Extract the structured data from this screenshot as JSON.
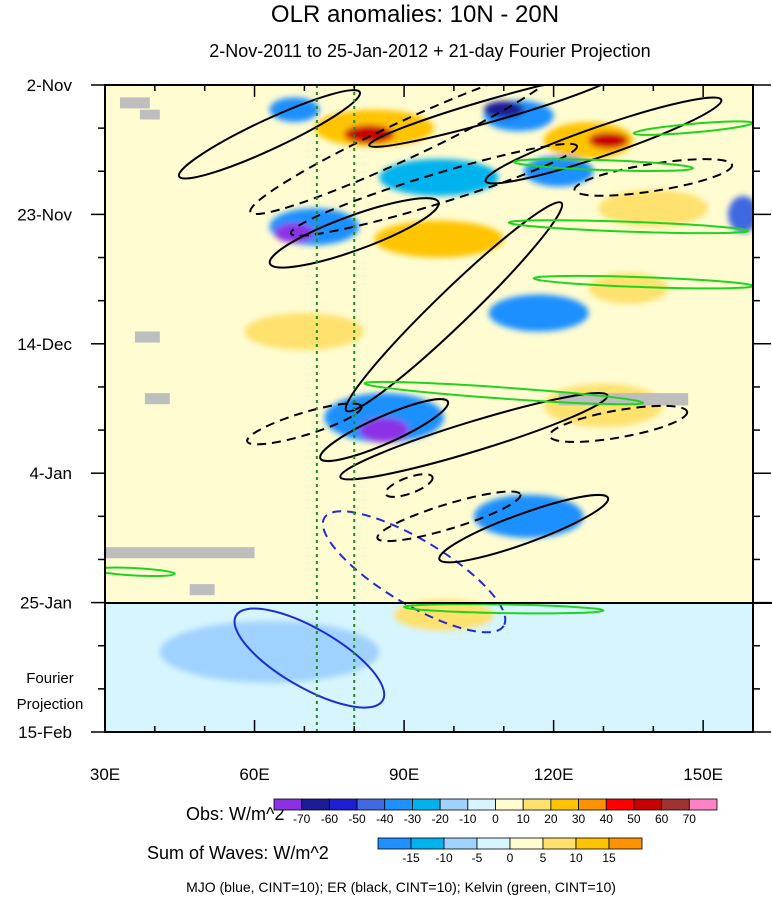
{
  "chart_data": {
    "type": "heatmap",
    "title": "OLR anomalies: 10N - 20N",
    "subtitle": "2-Nov-2011 to 25-Jan-2012 + 21-day Fourier Projection",
    "x_axis": {
      "range": [
        30,
        160
      ],
      "tick_values": [
        30,
        60,
        90,
        120,
        150
      ],
      "tick_labels": [
        "30E",
        "60E",
        "90E",
        "120E",
        "150E"
      ]
    },
    "y_axis": {
      "range_days": [
        0,
        105
      ],
      "tick_days": [
        0,
        21,
        42,
        63,
        84,
        105
      ],
      "tick_labels": [
        "2-Nov",
        "23-Nov",
        "14-Dec",
        "4-Jan",
        "25-Jan",
        "15-Feb"
      ],
      "observation_end_day": 84,
      "projection_label": [
        "Fourier",
        "Projection"
      ]
    },
    "reference_longitudes": [
      72.5,
      80
    ],
    "obs_colorbar": {
      "label": "Obs: W/m^2",
      "levels": [
        "-70",
        "-60",
        "-50",
        "-40",
        "-30",
        "-20",
        "-10",
        "0",
        "10",
        "20",
        "30",
        "40",
        "50",
        "60",
        "70"
      ],
      "colors": [
        "#8c30e6",
        "#1c1c96",
        "#1e1ed2",
        "#4169e1",
        "#1e90ff",
        "#00b2ee",
        "#a0d2ff",
        "#d6f5ff",
        "#fffcd2",
        "#ffe16e",
        "#ffc400",
        "#ff9200",
        "#ff0000",
        "#c80000",
        "#a03232",
        "#ff82c8"
      ]
    },
    "waves_colorbar": {
      "label": "Sum of Waves: W/m^2",
      "levels": [
        "-15",
        "-10",
        "-5",
        "0",
        "5",
        "10",
        "15"
      ],
      "colors": [
        "#1e90ff",
        "#00b2ee",
        "#a0d2ff",
        "#d6f5ff",
        "#fffcd2",
        "#ffe16e",
        "#ffc400",
        "#ff9200"
      ]
    },
    "footnote": "MJO (blue, CINT=10); ER (black, CINT=10); Kelvin (green, CINT=10)",
    "anomaly_blobs": [
      {
        "lon": 68,
        "day": 4,
        "rx": 5,
        "ry": 2,
        "level": -3
      },
      {
        "lon": 113,
        "day": 5,
        "rx": 7,
        "ry": 2.5,
        "level": -3
      },
      {
        "lon": 110,
        "day": 4,
        "rx": 4,
        "ry": 1.4,
        "level": -6
      },
      {
        "lon": 84,
        "day": 7,
        "rx": 12,
        "ry": 3,
        "level": 3
      },
      {
        "lon": 83,
        "day": 8,
        "rx": 5,
        "ry": 1.5,
        "level": 6
      },
      {
        "lon": 127,
        "day": 9,
        "rx": 9,
        "ry": 3,
        "level": 3
      },
      {
        "lon": 131,
        "day": 9,
        "rx": 4,
        "ry": 1.3,
        "level": 6
      },
      {
        "lon": 97,
        "day": 15,
        "rx": 12,
        "ry": 3,
        "level": -2
      },
      {
        "lon": 121,
        "day": 14,
        "rx": 7,
        "ry": 2.5,
        "level": -3
      },
      {
        "lon": 72,
        "day": 23,
        "rx": 9,
        "ry": 3,
        "level": -3
      },
      {
        "lon": 68,
        "day": 24,
        "rx": 4,
        "ry": 1.6,
        "level": -7
      },
      {
        "lon": 97,
        "day": 25,
        "rx": 13,
        "ry": 3,
        "level": 3
      },
      {
        "lon": 140,
        "day": 20,
        "rx": 11,
        "ry": 3,
        "level": 2
      },
      {
        "lon": 158,
        "day": 21,
        "rx": 3,
        "ry": 3,
        "level": -4
      },
      {
        "lon": 117,
        "day": 37,
        "rx": 10,
        "ry": 3,
        "level": -3
      },
      {
        "lon": 135,
        "day": 33,
        "rx": 8,
        "ry": 2.5,
        "level": 2
      },
      {
        "lon": 70,
        "day": 40,
        "rx": 12,
        "ry": 3,
        "level": 2
      },
      {
        "lon": 86,
        "day": 54,
        "rx": 12,
        "ry": 4,
        "level": -3
      },
      {
        "lon": 86,
        "day": 56,
        "rx": 5,
        "ry": 2,
        "level": -7
      },
      {
        "lon": 130,
        "day": 52,
        "rx": 12,
        "ry": 3.5,
        "level": 2
      },
      {
        "lon": 115,
        "day": 70,
        "rx": 11,
        "ry": 3.5,
        "level": -3
      },
      {
        "lon": 58,
        "day": 49,
        "rx": 16,
        "ry": 4,
        "level": 1
      },
      {
        "lon": 95,
        "day": 66,
        "rx": 10,
        "ry": 3,
        "level": 1
      },
      {
        "lon": 98,
        "day": 86,
        "rx": 10,
        "ry": 2.5,
        "level": 2
      },
      {
        "lon": 63,
        "day": 92,
        "rx": 22,
        "ry": 5,
        "level": -1
      }
    ],
    "contours": [
      {
        "wave": "MJO",
        "color": "#1e2dd2",
        "dashed": false,
        "lon": 71,
        "day": 93,
        "rx": 17,
        "ry": 4.8,
        "angle": 30
      },
      {
        "wave": "MJO",
        "color": "#1e2dd2",
        "dashed": true,
        "lon": 92,
        "day": 79,
        "rx": 21,
        "ry": 5.2,
        "angle": 31
      },
      {
        "wave": "ER",
        "color": "#000000",
        "dashed": false,
        "lon": 63,
        "day": 8,
        "rx": 20,
        "ry": 2.4,
        "angle": -25
      },
      {
        "wave": "ER",
        "color": "#000000",
        "dashed": true,
        "lon": 90,
        "day": 9,
        "rx": 34,
        "ry": 3,
        "angle": -25
      },
      {
        "wave": "ER",
        "color": "#000000",
        "dashed": false,
        "lon": 130,
        "day": 9,
        "rx": 25,
        "ry": 2.4,
        "angle": -19
      },
      {
        "wave": "ER",
        "color": "#000000",
        "dashed": false,
        "lon": 108,
        "day": 4,
        "rx": 26,
        "ry": 1.8,
        "angle": -16
      },
      {
        "wave": "ER",
        "color": "#000000",
        "dashed": true,
        "lon": 96,
        "day": 17,
        "rx": 30,
        "ry": 2.4,
        "angle": -17
      },
      {
        "wave": "ER",
        "color": "#000000",
        "dashed": true,
        "lon": 140,
        "day": 15,
        "rx": 16,
        "ry": 2.2,
        "angle": -9
      },
      {
        "wave": "ER",
        "color": "#000000",
        "dashed": false,
        "lon": 80,
        "day": 24,
        "rx": 18,
        "ry": 2.8,
        "angle": -20
      },
      {
        "wave": "ER",
        "color": "#000000",
        "dashed": false,
        "lon": 100,
        "day": 36,
        "rx": 30,
        "ry": 2.8,
        "angle": -44
      },
      {
        "wave": "ER",
        "color": "#000000",
        "dashed": false,
        "lon": 86,
        "day": 56,
        "rx": 14,
        "ry": 2.2,
        "angle": -24
      },
      {
        "wave": "ER",
        "color": "#000000",
        "dashed": false,
        "lon": 104,
        "day": 57,
        "rx": 28,
        "ry": 2.4,
        "angle": -17
      },
      {
        "wave": "ER",
        "color": "#000000",
        "dashed": true,
        "lon": 70,
        "day": 55,
        "rx": 12,
        "ry": 1.8,
        "angle": -17
      },
      {
        "wave": "ER",
        "color": "#000000",
        "dashed": true,
        "lon": 133,
        "day": 55,
        "rx": 14,
        "ry": 2.2,
        "angle": -10
      },
      {
        "wave": "ER",
        "color": "#000000",
        "dashed": false,
        "lon": 114,
        "day": 72,
        "rx": 18,
        "ry": 2.4,
        "angle": -20
      },
      {
        "wave": "ER",
        "color": "#000000",
        "dashed": true,
        "lon": 99,
        "day": 70,
        "rx": 15,
        "ry": 2,
        "angle": -17
      },
      {
        "wave": "ER",
        "color": "#000000",
        "dashed": true,
        "lon": 91,
        "day": 65,
        "rx": 5,
        "ry": 1.3,
        "angle": -20
      },
      {
        "wave": "Kelvin",
        "color": "#1fd41f",
        "dashed": false,
        "lon": 135,
        "day": 23,
        "rx": 24,
        "ry": 0.8,
        "angle": 2
      },
      {
        "wave": "Kelvin",
        "color": "#1fd41f",
        "dashed": false,
        "lon": 138,
        "day": 32,
        "rx": 22,
        "ry": 0.8,
        "angle": 2
      },
      {
        "wave": "Kelvin",
        "color": "#1fd41f",
        "dashed": false,
        "lon": 110,
        "day": 50,
        "rx": 28,
        "ry": 0.9,
        "angle": 4
      },
      {
        "wave": "Kelvin",
        "color": "#1fd41f",
        "dashed": false,
        "lon": 130,
        "day": 13,
        "rx": 18,
        "ry": 0.8,
        "angle": 2
      },
      {
        "wave": "Kelvin",
        "color": "#1fd41f",
        "dashed": false,
        "lon": 110,
        "day": 85,
        "rx": 20,
        "ry": 0.7,
        "angle": 1
      },
      {
        "wave": "Kelvin",
        "color": "#1fd41f",
        "dashed": false,
        "lon": 36,
        "day": 79,
        "rx": 8,
        "ry": 0.6,
        "angle": 3
      },
      {
        "wave": "Kelvin",
        "color": "#1fd41f",
        "dashed": false,
        "lon": 148,
        "day": 7,
        "rx": 12,
        "ry": 0.7,
        "angle": -5
      }
    ],
    "missing_data_boxes": [
      {
        "lon0": 33,
        "lon1": 39,
        "day0": 2,
        "day1": 3.8
      },
      {
        "lon0": 37,
        "lon1": 41,
        "day0": 4,
        "day1": 5.6
      },
      {
        "lon0": 36,
        "lon1": 41,
        "day0": 40,
        "day1": 41.8
      },
      {
        "lon0": 38,
        "lon1": 43,
        "day0": 50,
        "day1": 51.8
      },
      {
        "lon0": 30,
        "lon1": 60,
        "day0": 75,
        "day1": 76.8
      },
      {
        "lon0": 47,
        "lon1": 52,
        "day0": 81,
        "day1": 82.8
      },
      {
        "lon0": 121,
        "lon1": 147,
        "day0": 50,
        "day1": 52
      }
    ]
  }
}
